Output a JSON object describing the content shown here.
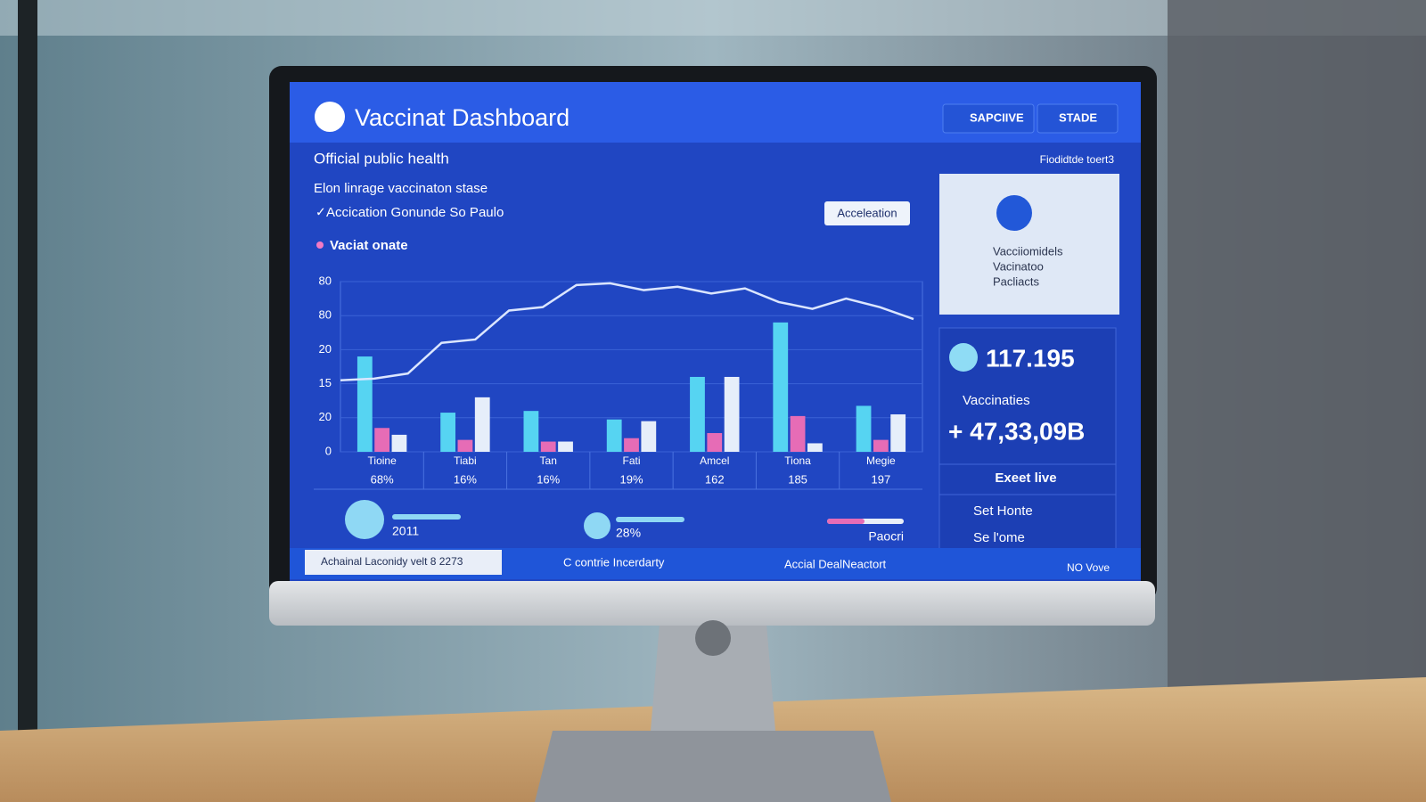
{
  "header": {
    "title": "Vaccinat Dashboard",
    "search": "SAPCIIVE",
    "menu": "STADE"
  },
  "subtitle": "Official public health",
  "corner_note": "Fiodidtde toert3",
  "notes": [
    "Elon linrage vaccinaton stase",
    "Accication Gonunde So Paulo",
    "Vaciat onate"
  ],
  "tooltip": "Acceleation",
  "info_card": {
    "lines": [
      "Vacciiomidels",
      "Vacinatoo",
      "Pacliacts"
    ]
  },
  "stats": {
    "primary": "117.195",
    "label": "Vaccinaties",
    "secondary": "+ 47,33,09B"
  },
  "live": {
    "title": "Exeet live",
    "items": [
      "Set Honte",
      "Se l'ome"
    ]
  },
  "chart": {
    "type": "bar",
    "categories": [
      "Tioine",
      "Tiabi",
      "Tan",
      "Fati",
      "Amcel",
      "Tiona",
      "Megie"
    ],
    "category_notes": [
      "68%",
      "16%",
      "16%",
      "19%",
      "162",
      "185",
      "197"
    ],
    "ylim": [
      0,
      100
    ],
    "yticks": [
      0,
      20,
      {
        "value": 40,
        "label": "15"
      },
      {
        "value": 60,
        "label": "20"
      },
      80,
      {
        "value": 100,
        "label": "80"
      }
    ],
    "series": [
      {
        "color": "#56d4f2",
        "values": [
          56,
          23,
          24,
          19,
          44,
          76,
          27
        ]
      },
      {
        "color": "#e66cb6",
        "values": [
          14,
          7,
          6,
          8,
          11,
          21,
          7
        ]
      },
      {
        "color": "#e6eefa",
        "values": [
          10,
          32,
          6,
          18,
          44,
          5,
          22
        ]
      }
    ],
    "line": {
      "color": "#dbe6ff",
      "values": [
        42,
        43,
        46,
        64,
        66,
        83,
        85,
        98,
        99,
        95,
        97,
        93,
        96,
        88,
        84,
        90,
        85,
        78
      ]
    }
  },
  "progress": [
    "2011",
    "28%",
    "Paocri"
  ],
  "footer": [
    "Achainal Laconidy velt 8 2273",
    "C contrie Incerdarty",
    "Accial DealNeactort",
    "NO Vove"
  ]
}
